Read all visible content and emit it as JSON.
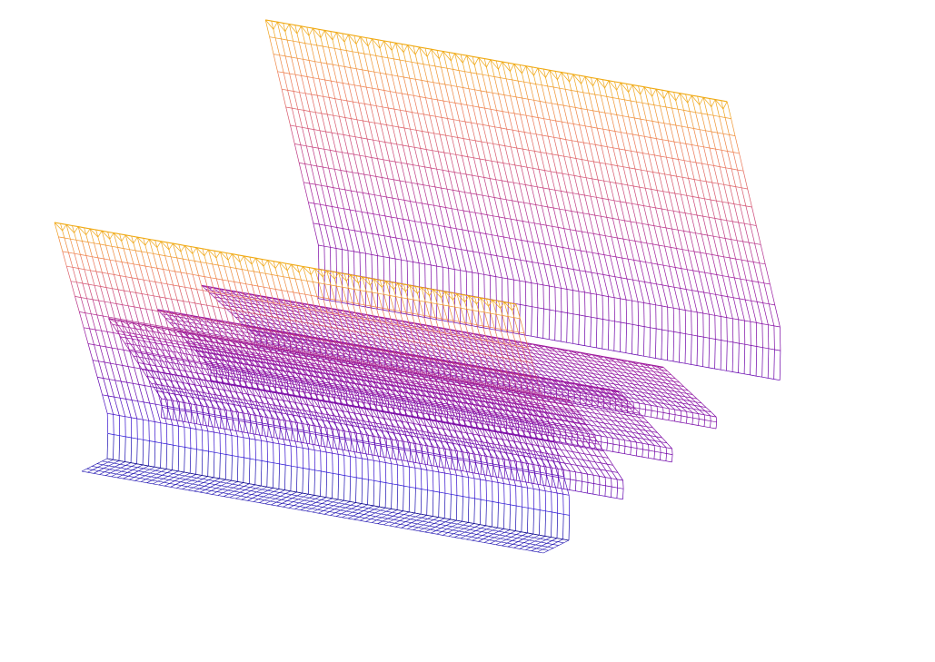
{
  "chart_data": {
    "type": "wireframe-3d",
    "title": "",
    "xlabel": "",
    "ylabel": "",
    "zlabel": "",
    "axes_visible": false,
    "grid": false,
    "legend": "none",
    "colormap": {
      "name": "plasma",
      "low": "#0d0887",
      "mid": "#9c179e",
      "high": "#f0a500"
    },
    "surfaces": [
      {
        "wall_height": 1.0,
        "base_height": 0.0,
        "depth": 0.0
      },
      {
        "wall_height": 0.42,
        "base_height": 0.3,
        "depth": 0.22
      },
      {
        "wall_height": 0.3,
        "base_height": 0.36,
        "depth": 0.42
      },
      {
        "wall_height": 0.26,
        "base_height": 0.4,
        "depth": 0.6
      },
      {
        "wall_height": 1.18,
        "base_height": 0.32,
        "depth": 0.86
      }
    ]
  }
}
